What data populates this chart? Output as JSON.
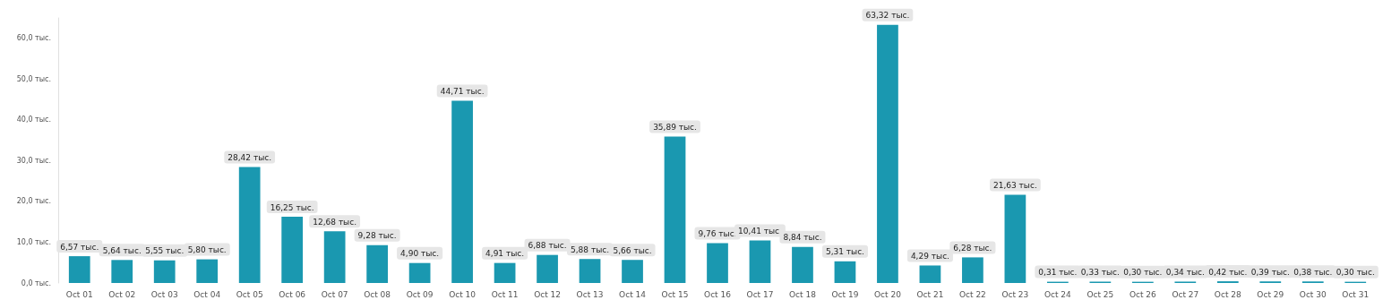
{
  "chart_data": {
    "type": "bar",
    "categories": [
      "Oct 01",
      "Oct 02",
      "Oct 03",
      "Oct 04",
      "Oct 05",
      "Oct 06",
      "Oct 07",
      "Oct 08",
      "Oct 09",
      "Oct 10",
      "Oct 11",
      "Oct 12",
      "Oct 13",
      "Oct 14",
      "Oct 15",
      "Oct 16",
      "Oct 17",
      "Oct 18",
      "Oct 19",
      "Oct 20",
      "Oct 21",
      "Oct 22",
      "Oct 23",
      "Oct 24",
      "Oct 25",
      "Oct 26",
      "Oct 27",
      "Oct 28",
      "Oct 29",
      "Oct 30",
      "Oct 31"
    ],
    "values": [
      6.57,
      5.64,
      5.55,
      5.8,
      28.42,
      16.25,
      12.68,
      9.28,
      4.9,
      44.71,
      4.91,
      6.88,
      5.88,
      5.66,
      35.89,
      9.76,
      10.41,
      8.84,
      5.31,
      63.32,
      4.29,
      6.28,
      21.63,
      0.31,
      0.33,
      0.3,
      0.34,
      0.42,
      0.39,
      0.38,
      0.3
    ],
    "value_labels": [
      "6,57 тыс.",
      "5,64 тыс.",
      "5,55 тыс.",
      "5,80 тыс.",
      "28,42 тыс.",
      "16,25 тыс.",
      "12,68 тыс.",
      "9,28 тыс.",
      "4,90 тыс.",
      "44,71 тыс.",
      "4,91 тыс.",
      "6,88 тыс.",
      "5,88 тыс.",
      "5,66 тыс.",
      "35,89 тыс.",
      "9,76 тыс.",
      "10,41 тыс.",
      "8,84 тыс.",
      "5,31 тыс.",
      "63,32 тыс.",
      "4,29 тыс.",
      "6,28 тыс.",
      "21,63 тыс.",
      "0,31 тыс.",
      "0,33 тыс.",
      "0,30 тыс.",
      "0,34 тыс.",
      "0,42 тыс.",
      "0,39 тыс.",
      "0,38 тыс.",
      "0,30 тыс."
    ],
    "color": "#1a98b0",
    "yticks": [
      {
        "value": 0,
        "label": "0,0 тыс."
      },
      {
        "value": 10,
        "label": "10,0 тыс."
      },
      {
        "value": 20,
        "label": "20,0 тыс."
      },
      {
        "value": 30,
        "label": "30,0 тыс."
      },
      {
        "value": 40,
        "label": "40,0 тыс."
      },
      {
        "value": 50,
        "label": "50,0 тыс."
      },
      {
        "value": 60,
        "label": "60,0 тыс."
      }
    ],
    "ylim": [
      0,
      65
    ],
    "grid": false
  }
}
